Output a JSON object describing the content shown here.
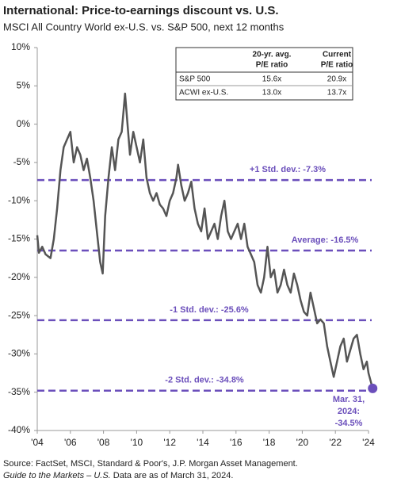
{
  "chart_data": {
    "type": "line",
    "title": "International: Price-to-earnings discount vs. U.S.",
    "subtitle": "MSCI All Country World ex-U.S. vs. S&P 500, next 12 months",
    "source": "Source: FactSet, MSCI, Standard & Poor's, J.P. Morgan Asset Management.",
    "note_italic": "Guide to the Markets – U.S.",
    "note": " Data are as of March 31, 2024.",
    "xlim": [
      2004,
      2024
    ],
    "xticks": [
      {
        "value": 2004,
        "label": "'04"
      },
      {
        "value": 2006,
        "label": "'06"
      },
      {
        "value": 2008,
        "label": "'08"
      },
      {
        "value": 2010,
        "label": "'10"
      },
      {
        "value": 2012,
        "label": "'12"
      },
      {
        "value": 2014,
        "label": "'14"
      },
      {
        "value": 2016,
        "label": "'16"
      },
      {
        "value": 2018,
        "label": "'18"
      },
      {
        "value": 2020,
        "label": "'20"
      },
      {
        "value": 2022,
        "label": "'22"
      },
      {
        "value": 2024,
        "label": "'24"
      }
    ],
    "ylim": [
      -40,
      10
    ],
    "yticks": [
      {
        "value": 10,
        "label": "10%"
      },
      {
        "value": 5,
        "label": "5%"
      },
      {
        "value": 0,
        "label": "0%"
      },
      {
        "value": -5,
        "label": "-5%"
      },
      {
        "value": -10,
        "label": "-10%"
      },
      {
        "value": -15,
        "label": "-15%"
      },
      {
        "value": -20,
        "label": "-20%"
      },
      {
        "value": -25,
        "label": "-25%"
      },
      {
        "value": -30,
        "label": "-30%"
      },
      {
        "value": -35,
        "label": "-35%"
      },
      {
        "value": -40,
        "label": "-40%"
      }
    ],
    "x": [
      2004.0,
      2004.1,
      2004.3,
      2004.5,
      2004.8,
      2005.0,
      2005.2,
      2005.4,
      2005.6,
      2005.8,
      2006.0,
      2006.2,
      2006.4,
      2006.6,
      2006.8,
      2007.0,
      2007.2,
      2007.4,
      2007.6,
      2007.8,
      2007.95,
      2008.1,
      2008.3,
      2008.5,
      2008.7,
      2008.9,
      2009.1,
      2009.3,
      2009.45,
      2009.6,
      2009.8,
      2010.0,
      2010.2,
      2010.4,
      2010.6,
      2010.8,
      2011.0,
      2011.2,
      2011.4,
      2011.6,
      2011.8,
      2012.0,
      2012.2,
      2012.4,
      2012.5,
      2012.7,
      2012.9,
      2013.1,
      2013.3,
      2013.5,
      2013.7,
      2013.9,
      2014.1,
      2014.3,
      2014.5,
      2014.7,
      2014.9,
      2015.1,
      2015.3,
      2015.5,
      2015.7,
      2015.9,
      2016.1,
      2016.3,
      2016.5,
      2016.7,
      2016.9,
      2017.1,
      2017.3,
      2017.5,
      2017.7,
      2017.9,
      2018.1,
      2018.3,
      2018.5,
      2018.7,
      2018.9,
      2019.1,
      2019.3,
      2019.5,
      2019.7,
      2019.9,
      2020.1,
      2020.3,
      2020.5,
      2020.7,
      2020.9,
      2021.1,
      2021.3,
      2021.5,
      2021.7,
      2021.9,
      2022.1,
      2022.3,
      2022.5,
      2022.7,
      2022.9,
      2023.1,
      2023.3,
      2023.5,
      2023.7,
      2023.9,
      2024.0,
      2024.25
    ],
    "series": [
      {
        "color": "#555555",
        "values": [
          -14.5,
          -16.8,
          -16,
          -17,
          -17.5,
          -15,
          -11,
          -6,
          -3,
          -2,
          -1,
          -5,
          -3,
          -4,
          -6,
          -4.5,
          -7,
          -10,
          -14,
          -18,
          -19.5,
          -12,
          -7,
          -3,
          -6,
          -2,
          -1,
          4,
          0,
          -4,
          -1,
          -3,
          -5,
          -2,
          -7,
          -9,
          -10,
          -9,
          -10.5,
          -11,
          -12,
          -10,
          -9,
          -7,
          -5.3,
          -8,
          -10,
          -9,
          -7.5,
          -11,
          -13,
          -14,
          -11,
          -15,
          -14,
          -13,
          -15,
          -12,
          -10,
          -14,
          -15,
          -14,
          -13,
          -15,
          -13,
          -16,
          -17,
          -18,
          -21,
          -22,
          -20,
          -16,
          -20,
          -19,
          -22,
          -21,
          -19,
          -21,
          -22,
          -19.5,
          -21,
          -23,
          -24.5,
          -25,
          -22,
          -24,
          -26,
          -25.5,
          -26,
          -29,
          -31,
          -33,
          -31,
          -29,
          -28,
          -31,
          -29.5,
          -28,
          -27.5,
          -30,
          -32,
          -31,
          -32.5,
          -34.5
        ]
      }
    ],
    "reference_lines": [
      {
        "value": -7.3,
        "label": "+1 Std. dev.: -7.3%"
      },
      {
        "value": -16.5,
        "label": "Average: -16.5%"
      },
      {
        "value": -25.6,
        "label": "-1 Std. dev.: -25.6%"
      },
      {
        "value": -34.8,
        "label": "-2 Std. dev.: -34.8%"
      }
    ],
    "reference_color": "#6b4fbb",
    "end_label": [
      "Mar. 31,",
      "2024:",
      "-34.5%"
    ],
    "table": {
      "headers": [
        [
          "20-yr. avg.",
          "P/E ratio"
        ],
        [
          "Current",
          "P/E ratio"
        ]
      ],
      "rows": [
        [
          "S&P 500",
          "15.6x",
          "20.9x"
        ],
        [
          "ACWI ex-U.S.",
          "13.0x",
          "13.7x"
        ]
      ]
    }
  }
}
